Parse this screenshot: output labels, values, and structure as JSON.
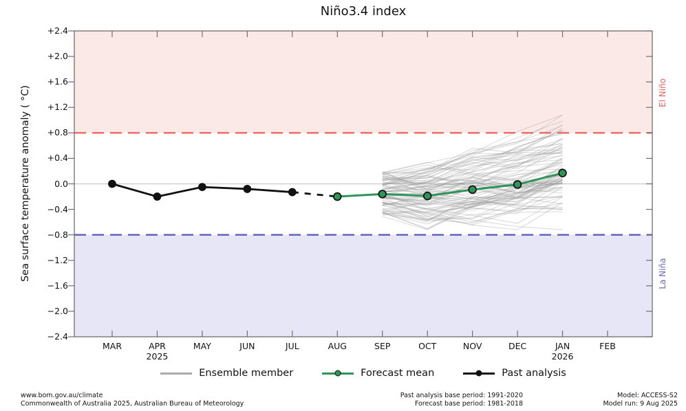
{
  "title": "Niño3.4 index",
  "axes": {
    "ylabel": "Sea surface temperature anomaly ( °C)"
  },
  "region_labels": {
    "el_nino": "El Niño",
    "la_nina": "La Niña"
  },
  "legend": {
    "ensemble": "Ensemble member",
    "forecast": "Forecast mean",
    "past": "Past analysis"
  },
  "footer": {
    "site": "www.bom.gov.au/climate",
    "copyright": "Commonwealth of Australia 2025, Australian Bureau of Meteorology",
    "past_base": "Past analysis base period: 1991-2020",
    "forecast_base": "Forecast base period: 1981-2018",
    "model": "Model: ACCESS-S2",
    "model_run": "Model run: 9 Aug 2025"
  },
  "colors": {
    "el_nino_band": "#fbe9e7",
    "la_nina_band": "#e6e6f7",
    "el_nino_line": "#f2655e",
    "la_nina_line": "#5e5eb4",
    "el_nino_text": "#e4635c",
    "la_nina_text": "#6868bc",
    "zero_line": "#c8c8c8",
    "spine": "#6e6e6e",
    "past": "#111111",
    "forecast": "#2e9458",
    "ensemble": "#999999"
  },
  "chart_data": {
    "type": "line",
    "title": "Niño3.4 index",
    "ylabel": "Sea surface temperature anomaly ( °C)",
    "ylim": [
      -2.4,
      2.4
    ],
    "grid": false,
    "legend_position": "bottom",
    "x_categories": [
      "MAR",
      "APR",
      "MAY",
      "JUN",
      "JUL",
      "AUG",
      "SEP",
      "OCT",
      "NOV",
      "DEC",
      "JAN",
      "FEB"
    ],
    "x_years": [
      {
        "index": 1,
        "label": "2025"
      },
      {
        "index": 10,
        "label": "2026"
      }
    ],
    "yticks": [
      {
        "value": 2.4,
        "label": "+2.4"
      },
      {
        "value": 2.0,
        "label": "+2.0"
      },
      {
        "value": 1.6,
        "label": "+1.6"
      },
      {
        "value": 1.2,
        "label": "+1.2"
      },
      {
        "value": 0.8,
        "label": "+0.8"
      },
      {
        "value": 0.4,
        "label": "+0.4"
      },
      {
        "value": 0.0,
        "label": "0.0"
      },
      {
        "value": -0.4,
        "label": "−0.4"
      },
      {
        "value": -0.8,
        "label": "−0.8"
      },
      {
        "value": -1.2,
        "label": "−1.2"
      },
      {
        "value": -1.6,
        "label": "−1.6"
      },
      {
        "value": -2.0,
        "label": "−2.0"
      },
      {
        "value": -2.4,
        "label": "−2.4"
      }
    ],
    "thresholds": {
      "el_nino": 0.8,
      "la_nina": -0.8
    },
    "series": [
      {
        "name": "Past analysis",
        "x": [
          "MAR",
          "APR",
          "MAY",
          "JUN",
          "JUL"
        ],
        "values": [
          0.0,
          -0.2,
          -0.05,
          -0.08,
          -0.13
        ],
        "style": "solid-markers"
      },
      {
        "name": "Past analysis provisional",
        "x": [
          "JUL",
          "AUG"
        ],
        "values": [
          -0.13,
          -0.2
        ],
        "style": "dashed"
      },
      {
        "name": "Forecast mean",
        "x": [
          "AUG",
          "SEP",
          "OCT",
          "NOV",
          "DEC",
          "JAN"
        ],
        "values": [
          -0.2,
          -0.16,
          -0.19,
          -0.09,
          -0.01,
          0.17
        ],
        "style": "solid-markers"
      }
    ],
    "ensemble": {
      "name": "Ensemble member",
      "months": [
        "SEP",
        "OCT",
        "NOV",
        "DEC",
        "JAN"
      ],
      "count": 92,
      "opacity": 0.38,
      "seed": 7,
      "start_jitter": 0.36,
      "step_jitter": 0.28,
      "clamp": [
        -0.72,
        1.08
      ]
    }
  }
}
